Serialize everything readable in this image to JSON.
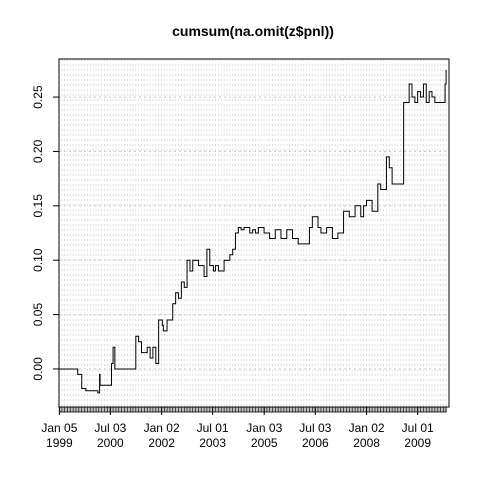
{
  "chart_data": {
    "type": "line",
    "title": "cumsum(na.omit(z$pnl))",
    "xlabel": "",
    "ylabel": "",
    "grid": true,
    "xlim": [
      "1999-01-01",
      "2010-06-01"
    ],
    "ylim": [
      -0.035,
      0.285
    ],
    "x_ticks": [
      {
        "date": "1999-01-05",
        "label": [
          "Jan 05",
          "1999"
        ]
      },
      {
        "date": "2000-07-03",
        "label": [
          "Jul 03",
          "2000"
        ]
      },
      {
        "date": "2002-01-02",
        "label": [
          "Jan 02",
          "2002"
        ]
      },
      {
        "date": "2003-07-01",
        "label": [
          "Jul 01",
          "2003"
        ]
      },
      {
        "date": "2005-01-03",
        "label": [
          "Jan 03",
          "2005"
        ]
      },
      {
        "date": "2006-07-03",
        "label": [
          "Jul 03",
          "2006"
        ]
      },
      {
        "date": "2008-01-02",
        "label": [
          "Jan 02",
          "2008"
        ]
      },
      {
        "date": "2009-07-01",
        "label": [
          "Jul 01",
          "2009"
        ]
      }
    ],
    "y_ticks": [
      0.0,
      0.05,
      0.1,
      0.15,
      0.2,
      0.25
    ],
    "y_tick_labels": [
      "0.00",
      "0.05",
      "0.10",
      "0.15",
      "0.20",
      "0.25"
    ],
    "series": [
      {
        "line_color": "#000000",
        "x": [
          "1999-01-05",
          "1999-07-01",
          "1999-07-20",
          "1999-09-01",
          "1999-10-15",
          "2000-02-01",
          "2000-02-20",
          "2000-03-10",
          "2000-03-15",
          "2000-07-01",
          "2000-07-15",
          "2000-08-01",
          "2000-08-20",
          "2000-09-01",
          "2001-03-01",
          "2001-04-01",
          "2001-05-01",
          "2001-06-01",
          "2001-08-01",
          "2001-09-01",
          "2001-10-01",
          "2001-11-01",
          "2001-12-01",
          "2002-01-10",
          "2002-01-20",
          "2002-03-01",
          "2002-05-01",
          "2002-06-01",
          "2002-07-01",
          "2002-08-01",
          "2002-09-01",
          "2002-10-01",
          "2002-11-01",
          "2002-12-01",
          "2003-01-01",
          "2003-02-01",
          "2003-04-01",
          "2003-05-01",
          "2003-06-01",
          "2003-07-10",
          "2003-08-01",
          "2003-09-01",
          "2003-10-01",
          "2003-11-01",
          "2004-01-01",
          "2004-02-01",
          "2004-03-01",
          "2004-04-01",
          "2004-05-01",
          "2004-06-01",
          "2004-07-01",
          "2004-08-01",
          "2004-09-01",
          "2004-10-01",
          "2004-11-01",
          "2005-01-01",
          "2005-03-01",
          "2005-05-01",
          "2005-07-01",
          "2005-09-01",
          "2005-11-01",
          "2006-01-01",
          "2006-03-01",
          "2006-05-01",
          "2006-06-01",
          "2006-08-01",
          "2006-09-01",
          "2006-11-01",
          "2007-01-01",
          "2007-03-01",
          "2007-05-01",
          "2007-07-01",
          "2007-09-01",
          "2007-11-01",
          "2007-12-01",
          "2008-01-01",
          "2008-03-01",
          "2008-05-01",
          "2008-06-01",
          "2008-08-01",
          "2008-09-01",
          "2008-10-01",
          "2008-11-01",
          "2008-12-01",
          "2009-02-01",
          "2009-03-01",
          "2009-04-01",
          "2009-05-01",
          "2009-06-01",
          "2009-07-01",
          "2009-08-01",
          "2009-09-01",
          "2009-10-01",
          "2009-11-01",
          "2009-12-01",
          "2010-01-01",
          "2010-02-01",
          "2010-03-01",
          "2010-04-01",
          "2010-04-20",
          "2010-05-01"
        ],
        "y": [
          0.0,
          0.0,
          -0.005,
          -0.018,
          -0.02,
          -0.02,
          -0.022,
          -0.005,
          -0.015,
          -0.015,
          0.005,
          0.02,
          0.0,
          0.0,
          0.0,
          0.03,
          0.025,
          0.015,
          0.02,
          0.01,
          0.02,
          0.005,
          0.045,
          0.04,
          0.035,
          0.045,
          0.06,
          0.07,
          0.065,
          0.08,
          0.075,
          0.1,
          0.09,
          0.1,
          0.1,
          0.095,
          0.085,
          0.11,
          0.095,
          0.09,
          0.095,
          0.09,
          0.09,
          0.1,
          0.105,
          0.11,
          0.125,
          0.13,
          0.128,
          0.13,
          0.13,
          0.125,
          0.128,
          0.125,
          0.13,
          0.125,
          0.12,
          0.128,
          0.12,
          0.128,
          0.12,
          0.115,
          0.115,
          0.13,
          0.14,
          0.13,
          0.125,
          0.13,
          0.12,
          0.125,
          0.145,
          0.14,
          0.15,
          0.14,
          0.15,
          0.155,
          0.145,
          0.17,
          0.165,
          0.195,
          0.185,
          0.17,
          0.17,
          0.17,
          0.245,
          0.245,
          0.262,
          0.25,
          0.245,
          0.255,
          0.25,
          0.262,
          0.245,
          0.255,
          0.25,
          0.245,
          0.245,
          0.245,
          0.245,
          0.262,
          0.275
        ]
      }
    ]
  }
}
